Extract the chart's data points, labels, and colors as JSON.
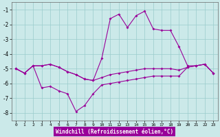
{
  "xlabel": "Windchill (Refroidissement éolien,°C)",
  "bg_color": "#cbe9e9",
  "line_color": "#990099",
  "grid_color": "#99cccc",
  "hours": [
    0,
    1,
    2,
    3,
    4,
    5,
    6,
    7,
    8,
    9,
    10,
    11,
    12,
    13,
    14,
    15,
    16,
    17,
    18,
    19,
    20,
    21,
    22,
    23
  ],
  "line_top": [
    -5.0,
    -5.3,
    -4.8,
    -4.8,
    -4.7,
    -4.9,
    -5.2,
    -5.4,
    -5.7,
    -5.8,
    -4.3,
    -1.6,
    -1.3,
    -2.2,
    -1.4,
    -1.1,
    -2.3,
    -2.4,
    -2.4,
    -3.5,
    -4.8,
    -4.8,
    -4.7,
    -5.3
  ],
  "line_mid": [
    -5.0,
    -5.3,
    -4.8,
    -4.8,
    -4.7,
    -4.9,
    -5.2,
    -5.4,
    -5.7,
    -5.8,
    -5.6,
    -5.4,
    -5.3,
    -5.2,
    -5.1,
    -5.0,
    -5.0,
    -5.0,
    -5.0,
    -5.1,
    -4.9,
    -4.8,
    -4.7,
    -5.3
  ],
  "line_bot": [
    -5.0,
    -5.3,
    -4.8,
    -6.3,
    -6.2,
    -6.5,
    -6.7,
    -7.9,
    -7.5,
    -6.7,
    -6.1,
    -6.0,
    -5.9,
    -5.8,
    -5.7,
    -5.6,
    -5.5,
    -5.5,
    -5.5,
    -5.5,
    -4.9,
    -4.8,
    -4.7,
    -5.3
  ],
  "ylim": [
    -8.5,
    -0.5
  ],
  "yticks": [
    -8,
    -7,
    -6,
    -5,
    -4,
    -3,
    -2,
    -1
  ],
  "xlim": [
    -0.5,
    23.5
  ],
  "xlabel_fontsize": 5.5,
  "xlabel_bg": "#990099",
  "xlabel_fg": "#ffffff"
}
